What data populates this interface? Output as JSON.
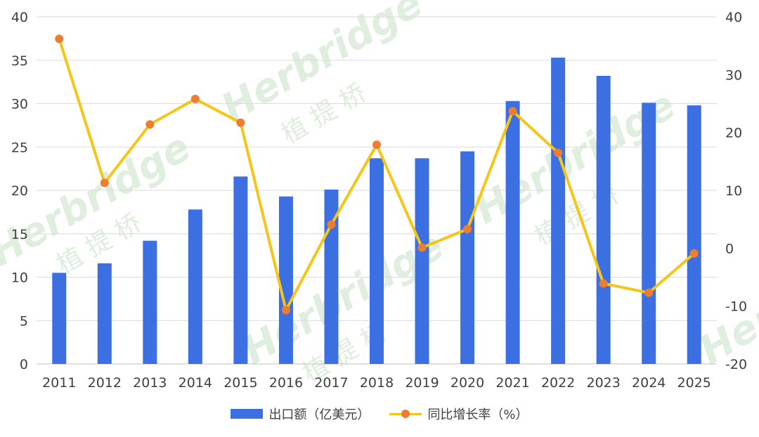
{
  "chart_data": {
    "type": "bar",
    "categories": [
      "2011",
      "2012",
      "2013",
      "2014",
      "2015",
      "2016",
      "2017",
      "2018",
      "2019",
      "2020",
      "2021",
      "2022",
      "2023",
      "2024",
      "2025"
    ],
    "series": [
      {
        "name": "出口额（亿美元）",
        "type": "bar",
        "axis": "left",
        "color": "#3b6fe2",
        "values": [
          10.5,
          11.6,
          14.2,
          17.8,
          21.6,
          19.3,
          20.1,
          23.7,
          23.7,
          24.5,
          30.3,
          35.3,
          33.2,
          30.1,
          29.8
        ]
      },
      {
        "name": "同比增长率（%）",
        "type": "line",
        "axis": "right",
        "color": "#f5c518",
        "marker_color": "#ed7d31",
        "values": [
          36.2,
          11.3,
          21.4,
          25.8,
          21.7,
          -10.7,
          4.1,
          17.9,
          0.1,
          3.3,
          23.7,
          16.5,
          -6.1,
          -7.7,
          -0.9
        ]
      }
    ],
    "y_left": {
      "ylim": [
        0,
        40
      ],
      "ticks": [
        "0",
        "5",
        "10",
        "15",
        "20",
        "25",
        "30",
        "35",
        "40"
      ]
    },
    "y_right": {
      "ylim": [
        -20,
        40
      ],
      "ticks": [
        "-20",
        "-10",
        "0",
        "10",
        "20",
        "30",
        "40"
      ]
    },
    "grid": true,
    "legend_position": "bottom"
  },
  "watermark": {
    "text": "Herbridge",
    "cn": "植 提 桥"
  }
}
